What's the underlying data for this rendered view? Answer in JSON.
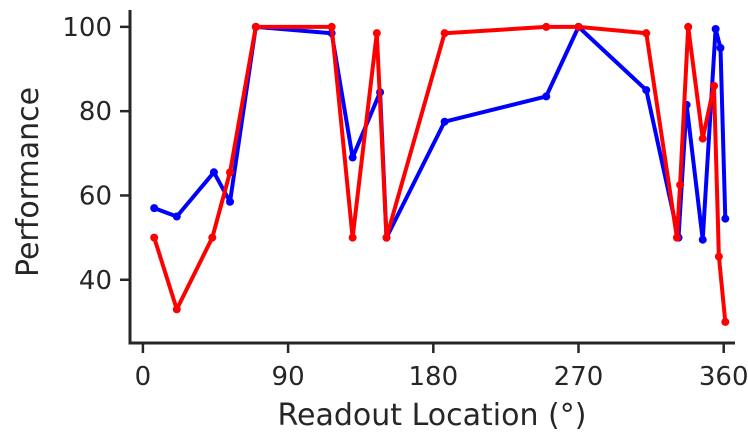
{
  "chart_data": {
    "type": "line",
    "title": "",
    "xlabel": "Readout Location (°)",
    "ylabel": "Performance",
    "xlim": [
      -8,
      367
    ],
    "ylim": [
      25,
      104
    ],
    "xticks": [
      0,
      90,
      180,
      270,
      360
    ],
    "yticks": [
      40,
      60,
      80,
      100
    ],
    "grid": false,
    "legend": "none",
    "series": [
      {
        "color": "#0000ff",
        "x": [
          7,
          21,
          44,
          54,
          70,
          117,
          130,
          147,
          151,
          187,
          250,
          270,
          312,
          332,
          337,
          347,
          355,
          358,
          361
        ],
        "y": [
          57,
          55,
          65.5,
          58.5,
          100,
          98.5,
          69,
          84.5,
          50,
          77.5,
          83.5,
          100,
          85,
          50,
          81.5,
          49.5,
          99.5,
          95,
          54.5
        ]
      },
      {
        "color": "#ff0000",
        "x": [
          7,
          21,
          43,
          54,
          70,
          117,
          130,
          145,
          151,
          187,
          250,
          270,
          312,
          331,
          333,
          338,
          347,
          354,
          357,
          361
        ],
        "y": [
          50,
          33,
          50,
          65.5,
          100,
          100,
          50,
          98.5,
          50,
          98.5,
          100,
          100,
          98.5,
          50,
          62.5,
          100,
          73.5,
          86,
          45.5,
          30
        ]
      }
    ]
  }
}
